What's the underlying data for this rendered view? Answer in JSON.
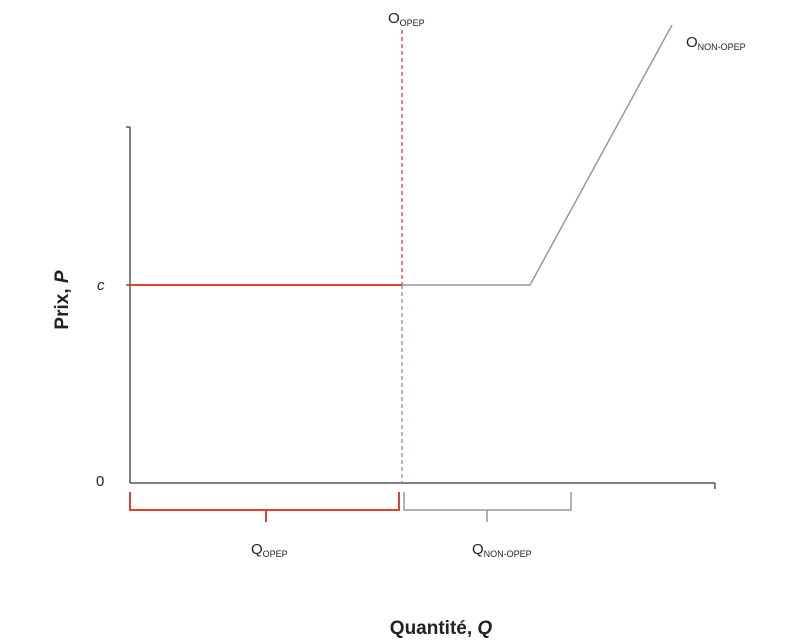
{
  "labels": {
    "supply_opep": {
      "main": "O",
      "sub": "OPEP"
    },
    "supply_non_opep": {
      "main": "O",
      "sub": "NON-OPEP"
    },
    "y_axis": {
      "text": "Prix, ",
      "var": "P"
    },
    "x_axis": {
      "text": "Quantité, ",
      "var": "Q"
    },
    "price_c": "c",
    "origin": "0",
    "q_opep": {
      "main": "Q",
      "sub": "OPEP"
    },
    "q_non_opep": {
      "main": "Q",
      "sub": "NON-OPEP"
    }
  }
}
